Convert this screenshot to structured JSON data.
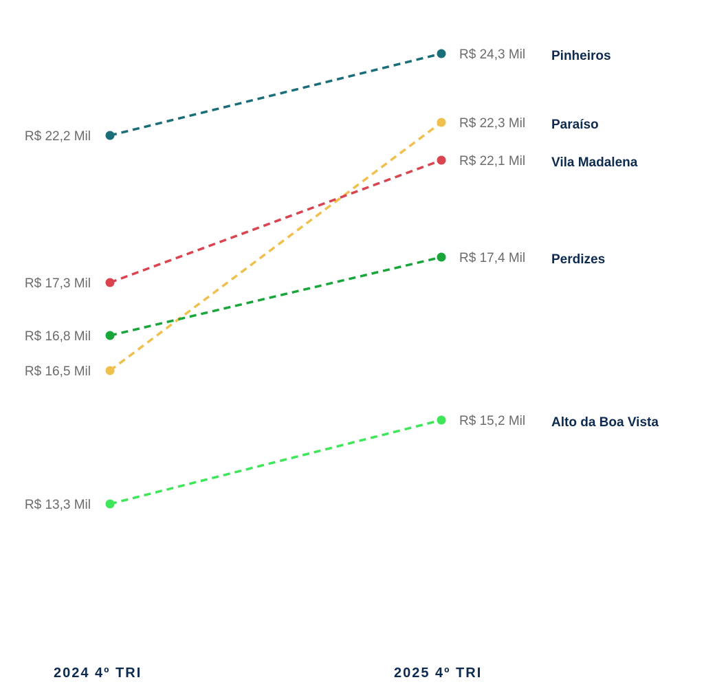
{
  "chart_data": {
    "type": "line",
    "subtype": "slope",
    "categories": [
      "2024 4º TRI",
      "2025 4º TRI"
    ],
    "unit": "R$ Mil",
    "series": [
      {
        "name": "Pinheiros",
        "values": [
          22.2,
          24.3
        ],
        "labels": [
          "R$ 22,2 Mil",
          "R$ 24,3 Mil"
        ],
        "color": "#1a6e78"
      },
      {
        "name": "Paraíso",
        "values": [
          16.5,
          22.3
        ],
        "labels": [
          "R$ 16,5 Mil",
          "R$ 22,3 Mil"
        ],
        "color": "#f0c04f"
      },
      {
        "name": "Vila Madalena",
        "values": [
          17.3,
          22.1
        ],
        "labels": [
          "R$ 17,3 Mil",
          "R$ 22,1 Mil"
        ],
        "color": "#d9444f"
      },
      {
        "name": "Perdizes",
        "values": [
          16.8,
          17.4
        ],
        "labels": [
          "R$ 16,8 Mil",
          "R$ 17,4 Mil"
        ],
        "color": "#18a63a"
      },
      {
        "name": "Alto da Boa Vista",
        "values": [
          13.3,
          15.2
        ],
        "labels": [
          "R$ 13,3 Mil",
          "R$ 15,2 Mil"
        ],
        "color": "#3ee65a"
      }
    ],
    "line_style": "dashed",
    "grid": false,
    "legend": "right-of-end-points"
  }
}
